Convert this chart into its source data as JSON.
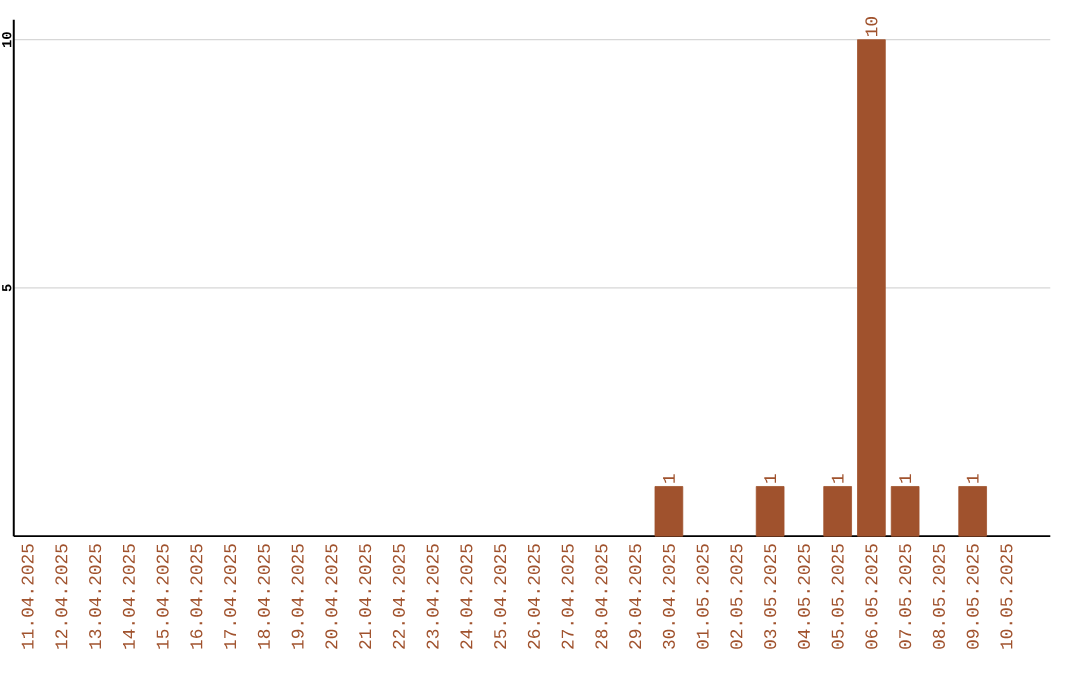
{
  "chart_data": {
    "type": "bar",
    "categories": [
      "11.04.2025",
      "12.04.2025",
      "13.04.2025",
      "14.04.2025",
      "15.04.2025",
      "16.04.2025",
      "17.04.2025",
      "18.04.2025",
      "19.04.2025",
      "20.04.2025",
      "21.04.2025",
      "22.04.2025",
      "23.04.2025",
      "24.04.2025",
      "25.04.2025",
      "26.04.2025",
      "27.04.2025",
      "28.04.2025",
      "29.04.2025",
      "30.04.2025",
      "01.05.2025",
      "02.05.2025",
      "03.05.2025",
      "04.05.2025",
      "05.05.2025",
      "06.05.2025",
      "07.05.2025",
      "08.05.2025",
      "09.05.2025",
      "10.05.2025"
    ],
    "values": [
      null,
      null,
      null,
      null,
      null,
      null,
      null,
      null,
      null,
      null,
      null,
      null,
      null,
      null,
      null,
      null,
      null,
      null,
      null,
      1,
      null,
      null,
      1,
      null,
      1,
      10,
      1,
      null,
      1,
      null
    ],
    "color": "#a0522d",
    "ylim": [
      0,
      10.4
    ],
    "yticks": [
      5,
      10
    ],
    "grid": "y",
    "data_labels": true
  }
}
